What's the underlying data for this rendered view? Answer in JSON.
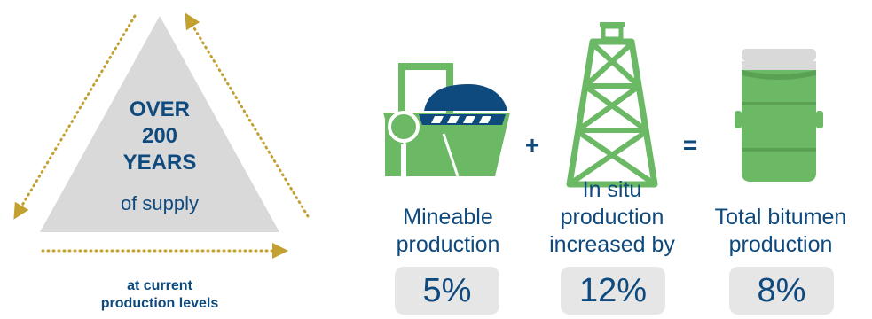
{
  "colors": {
    "navy": "#0f4a7e",
    "green": "#6bb865",
    "gold": "#c2a130",
    "gray": "#d9d9d9",
    "badge_bg": "#e6e6e6"
  },
  "triangle": {
    "line1": "OVER",
    "line2": "200",
    "line3": "YEARS",
    "sub": "of supply"
  },
  "footnote": {
    "line1": "at current",
    "line2": "production levels"
  },
  "icons": [
    "dotted-arrow-icon",
    "oil-sands-mine-icon",
    "drilling-derrick-icon",
    "oil-barrel-icon"
  ],
  "operators": {
    "plus": "+",
    "equals": "="
  },
  "metrics": [
    {
      "label_lines": [
        "Mineable",
        "production"
      ],
      "value": "5%"
    },
    {
      "label_lines": [
        "In situ",
        "production",
        "increased by"
      ],
      "value": "12%"
    },
    {
      "label_lines": [
        "Total bitumen",
        "production"
      ],
      "value": "8%"
    }
  ]
}
